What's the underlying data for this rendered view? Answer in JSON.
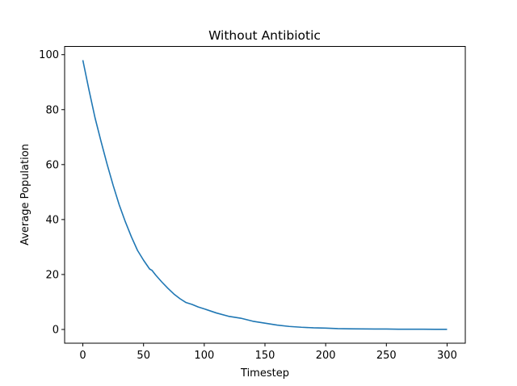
{
  "chart_data": {
    "type": "line",
    "title": "Without Antibiotic",
    "xlabel": "Timestep",
    "ylabel": "Average Population",
    "xlim": [
      -15,
      315
    ],
    "ylim": [
      -5,
      103
    ],
    "xticks": [
      0,
      50,
      100,
      150,
      200,
      250,
      300
    ],
    "yticks": [
      0,
      20,
      40,
      60,
      80,
      100
    ],
    "grid": false,
    "legend": "none",
    "series": [
      {
        "color": "#1f77b4",
        "x": [
          0,
          5,
          10,
          15,
          20,
          25,
          30,
          35,
          40,
          45,
          50,
          55,
          57,
          60,
          65,
          70,
          75,
          80,
          85,
          90,
          95,
          100,
          110,
          120,
          130,
          140,
          150,
          160,
          170,
          180,
          190,
          200,
          210,
          220,
          230,
          240,
          250,
          260,
          270,
          280,
          290,
          300
        ],
        "y": [
          98,
          87.3,
          77.1,
          68.4,
          60.1,
          52.4,
          45.3,
          39.2,
          33.7,
          28.8,
          25.2,
          22.0,
          21.5,
          19.8,
          17.3,
          15.0,
          12.9,
          11.2,
          9.8,
          9.1,
          8.2,
          7.5,
          6.0,
          4.8,
          4.1,
          3.0,
          2.3,
          1.6,
          1.1,
          0.8,
          0.6,
          0.5,
          0.3,
          0.25,
          0.2,
          0.15,
          0.15,
          0.1,
          0.1,
          0.08,
          0.05,
          0.05
        ]
      }
    ]
  }
}
